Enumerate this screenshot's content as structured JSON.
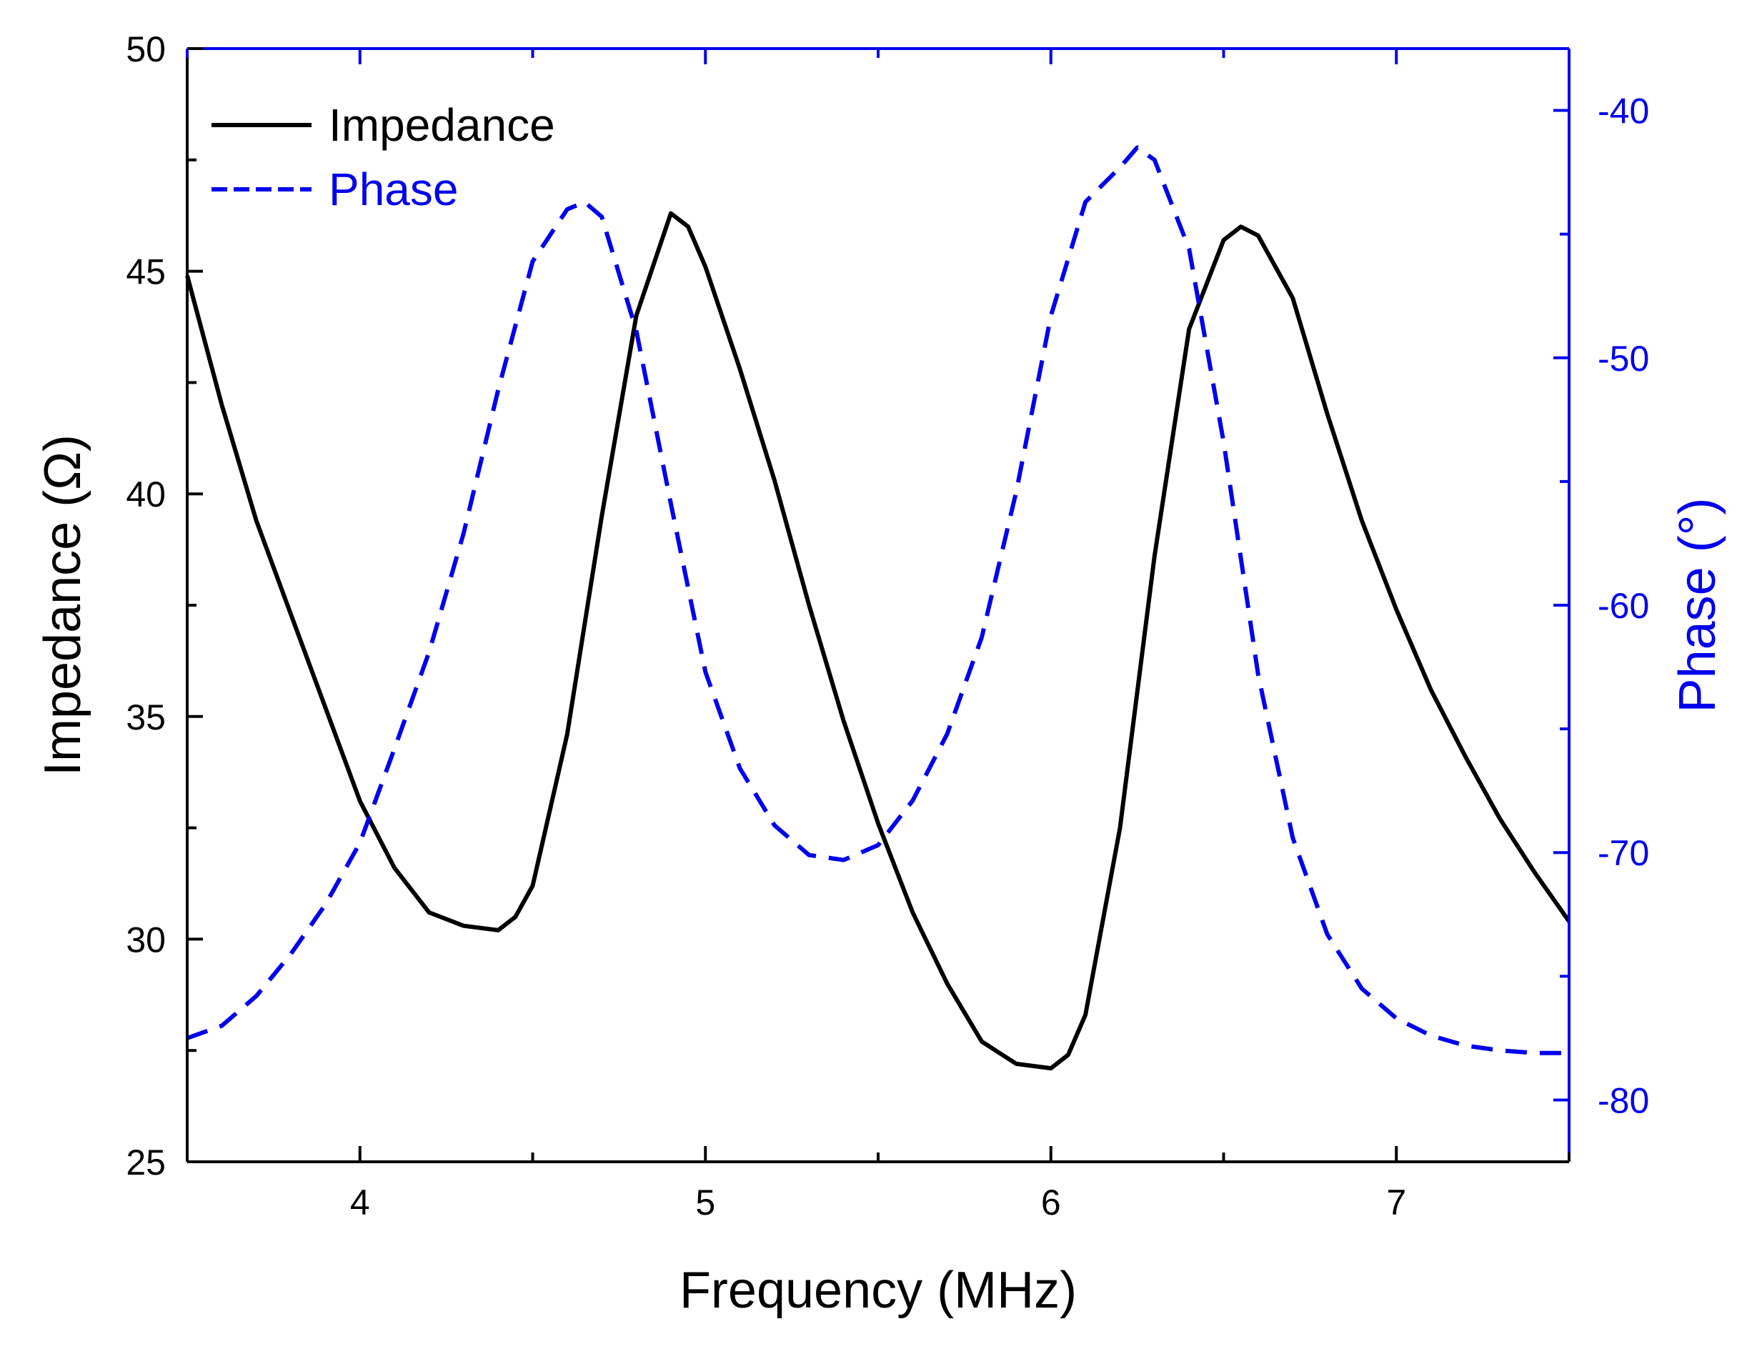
{
  "chart_data": {
    "type": "line",
    "title": "",
    "xlabel": "Frequency (MHz)",
    "ylabel": "Impedance (Ω)",
    "y2label": "Phase (°)",
    "xlim": [
      3.5,
      7.5
    ],
    "ylim": [
      25,
      50
    ],
    "y2lim": [
      -82.5,
      -37.5
    ],
    "xticks": [
      4,
      5,
      6,
      7
    ],
    "xtick_labels": [
      "4",
      "5",
      "6",
      "7"
    ],
    "yticks": [
      25,
      30,
      35,
      40,
      45,
      50
    ],
    "ytick_labels": [
      "25",
      "30",
      "35",
      "40",
      "45",
      "50"
    ],
    "y2ticks": [
      -80,
      -70,
      -60,
      -50,
      -40
    ],
    "y2tick_labels": [
      "-80",
      "-70",
      "-60",
      "-50",
      "-40"
    ],
    "legend_position": "top-left",
    "series": [
      {
        "name": "Impedance",
        "axis": "left",
        "color": "#000000",
        "style": "solid",
        "x": [
          3.5,
          3.6,
          3.7,
          3.8,
          3.9,
          4.0,
          4.1,
          4.2,
          4.3,
          4.4,
          4.45,
          4.5,
          4.6,
          4.7,
          4.8,
          4.9,
          4.95,
          5.0,
          5.1,
          5.2,
          5.3,
          5.4,
          5.5,
          5.6,
          5.7,
          5.8,
          5.9,
          6.0,
          6.05,
          6.1,
          6.2,
          6.3,
          6.4,
          6.5,
          6.55,
          6.6,
          6.7,
          6.8,
          6.9,
          7.0,
          7.1,
          7.2,
          7.3,
          7.4,
          7.5
        ],
        "values": [
          44.9,
          42.0,
          39.4,
          37.3,
          35.2,
          33.1,
          31.6,
          30.6,
          30.3,
          30.2,
          30.5,
          31.2,
          34.6,
          39.5,
          44.0,
          46.3,
          46.0,
          45.1,
          42.8,
          40.3,
          37.5,
          34.9,
          32.6,
          30.6,
          29.0,
          27.7,
          27.2,
          27.1,
          27.4,
          28.3,
          32.5,
          38.6,
          43.7,
          45.7,
          46.0,
          45.8,
          44.4,
          41.8,
          39.4,
          37.4,
          35.6,
          34.1,
          32.7,
          31.5,
          30.4
        ]
      },
      {
        "name": "Phase",
        "axis": "right",
        "color": "#0000ee",
        "style": "dashed",
        "x": [
          3.5,
          3.6,
          3.7,
          3.8,
          3.9,
          4.0,
          4.1,
          4.2,
          4.3,
          4.4,
          4.5,
          4.6,
          4.65,
          4.7,
          4.8,
          4.9,
          5.0,
          5.1,
          5.2,
          5.3,
          5.4,
          5.5,
          5.6,
          5.7,
          5.8,
          5.9,
          6.0,
          6.1,
          6.2,
          6.25,
          6.3,
          6.4,
          6.5,
          6.6,
          6.7,
          6.8,
          6.9,
          7.0,
          7.1,
          7.2,
          7.3,
          7.4,
          7.5
        ],
        "values": [
          -77.5,
          -77.0,
          -75.8,
          -74.1,
          -72.1,
          -69.6,
          -65.8,
          -61.9,
          -57.1,
          -51.3,
          -46.1,
          -44.0,
          -43.7,
          -44.3,
          -48.9,
          -55.9,
          -62.7,
          -66.6,
          -68.9,
          -70.1,
          -70.3,
          -69.7,
          -67.9,
          -65.2,
          -61.3,
          -55.4,
          -48.3,
          -43.7,
          -42.3,
          -41.5,
          -42.0,
          -45.6,
          -53.4,
          -62.8,
          -69.4,
          -73.3,
          -75.5,
          -76.7,
          -77.4,
          -77.8,
          -78.0,
          -78.1,
          -78.1
        ]
      }
    ]
  },
  "colors": {
    "left_axis": "#000000",
    "right_axis": "#0000ee",
    "background": "#ffffff"
  }
}
